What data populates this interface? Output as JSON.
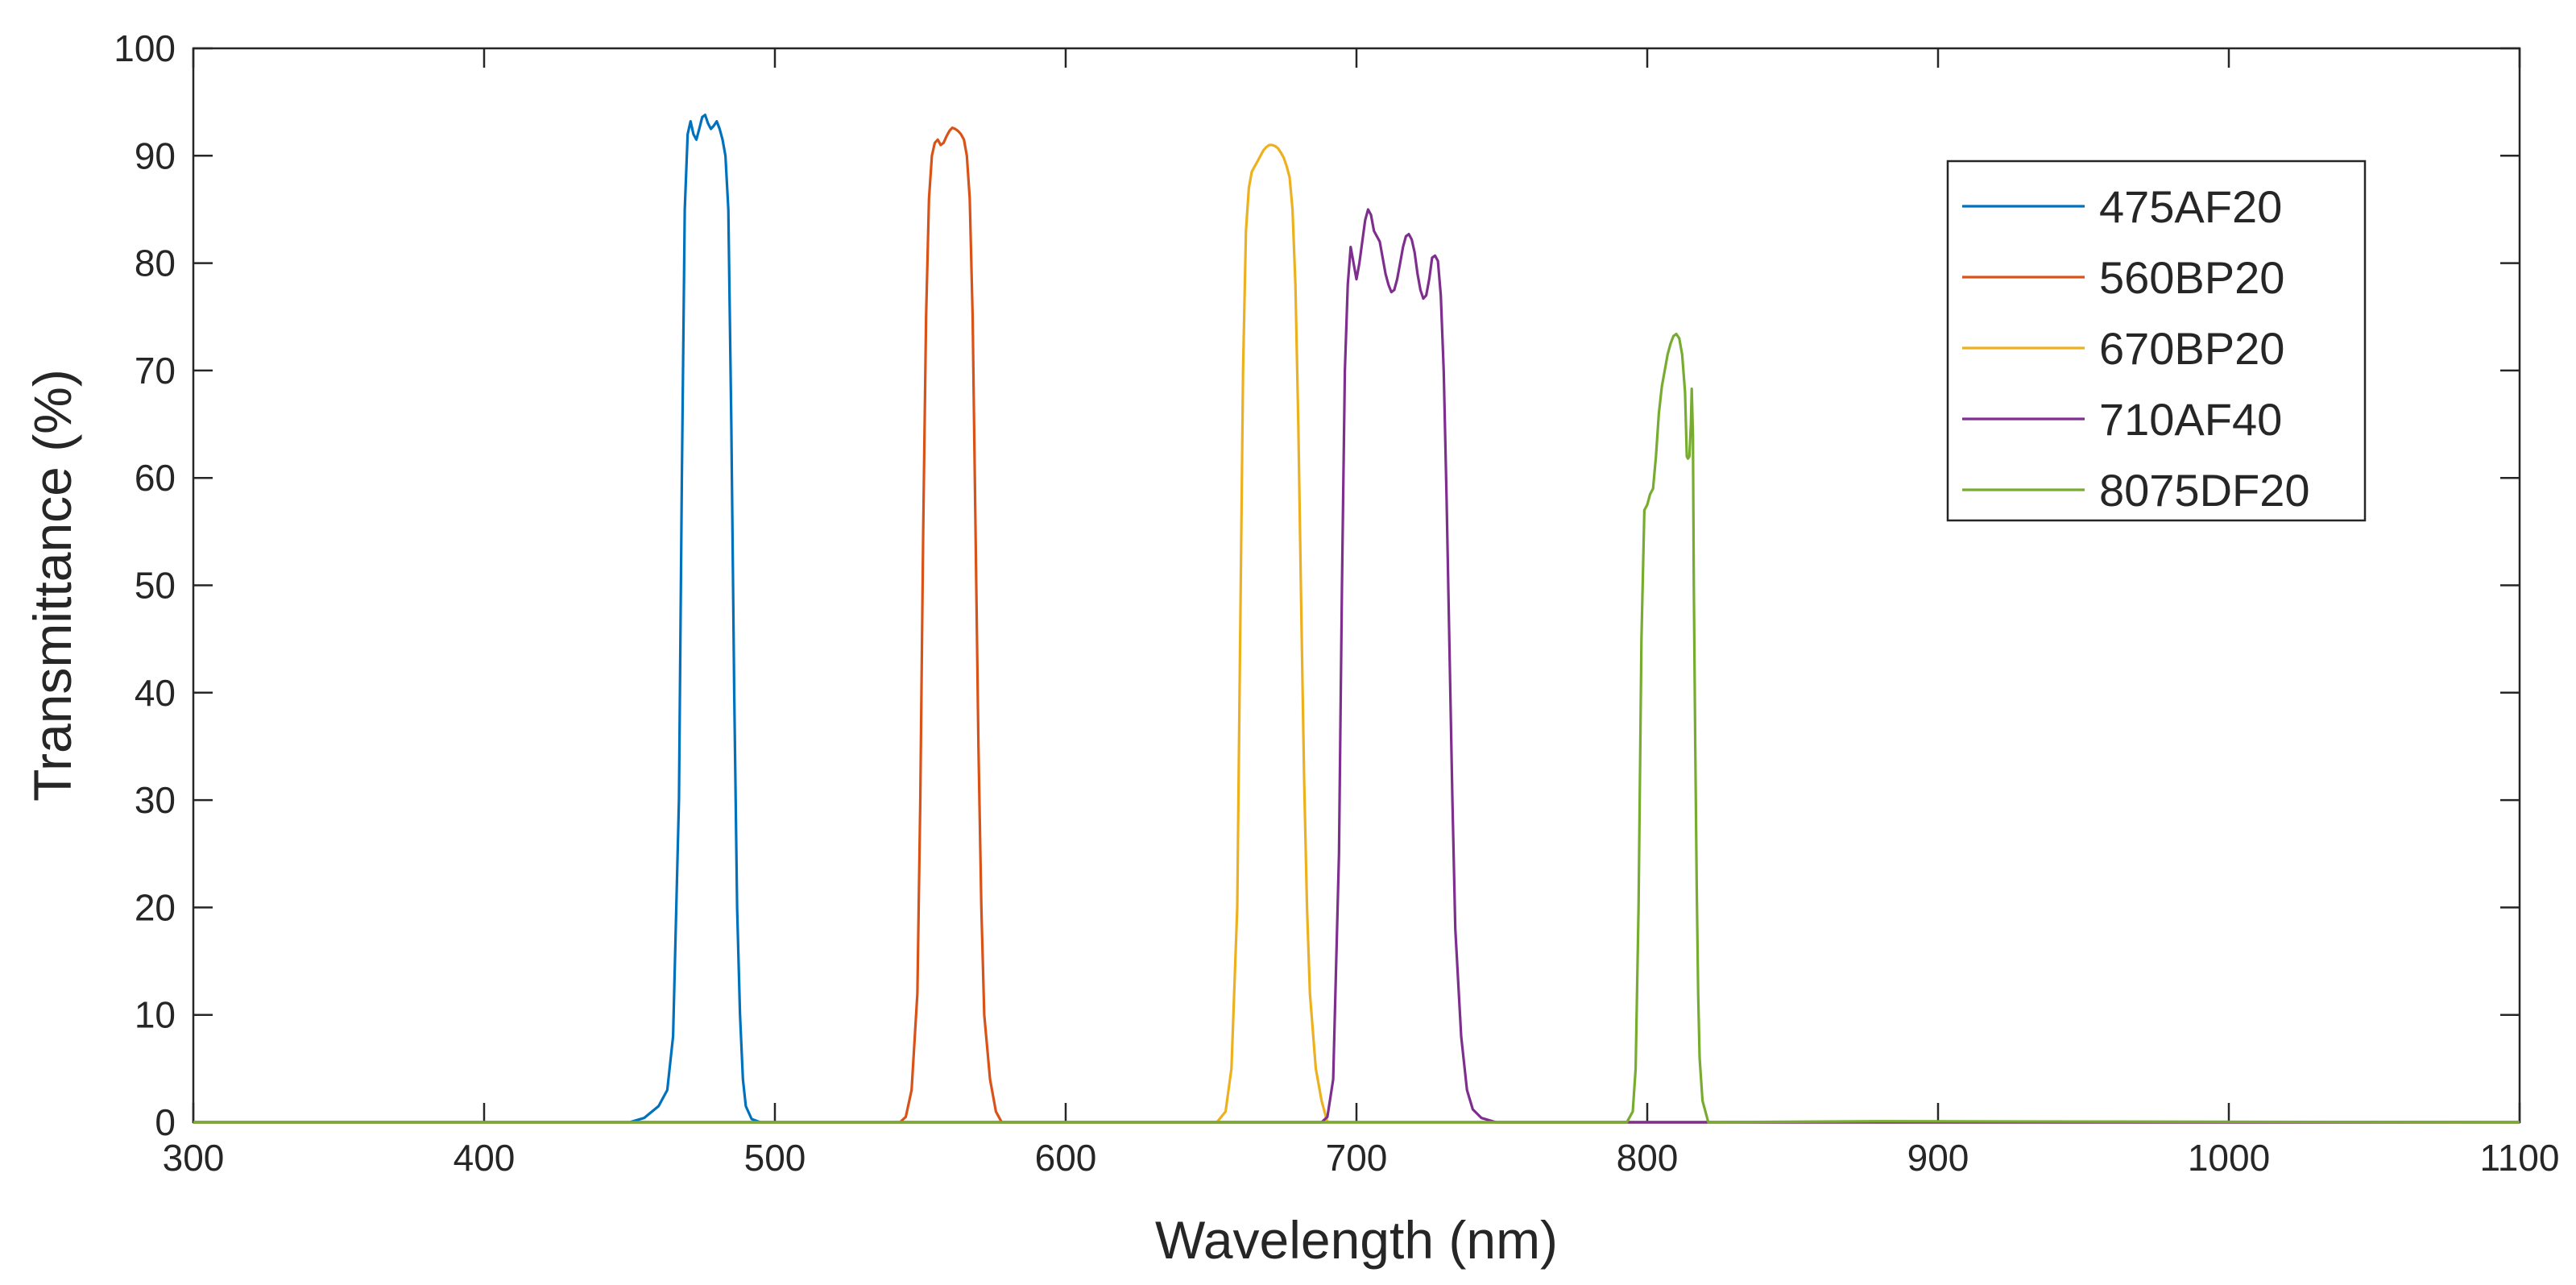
{
  "chart_data": {
    "type": "line",
    "title": "",
    "xlabel": "Wavelength (nm)",
    "ylabel": "Transmittance (%)",
    "xlim": [
      300,
      1100
    ],
    "ylim": [
      0,
      100
    ],
    "xticks": [
      300,
      400,
      500,
      600,
      700,
      800,
      900,
      1000,
      1100
    ],
    "yticks": [
      0,
      10,
      20,
      30,
      40,
      50,
      60,
      70,
      80,
      90,
      100
    ],
    "grid": false,
    "legend_position": "top-right",
    "series": [
      {
        "name": "475AF20",
        "color": "#0072BD",
        "points": [
          [
            300,
            0
          ],
          [
            450,
            0
          ],
          [
            455,
            0.4
          ],
          [
            460,
            1.5
          ],
          [
            463,
            3
          ],
          [
            465,
            8
          ],
          [
            467,
            30
          ],
          [
            468,
            60
          ],
          [
            469,
            85
          ],
          [
            470,
            92
          ],
          [
            471,
            93.2
          ],
          [
            472,
            92
          ],
          [
            473,
            91.5
          ],
          [
            474,
            92.5
          ],
          [
            475,
            93.6
          ],
          [
            476,
            93.8
          ],
          [
            477,
            93
          ],
          [
            478,
            92.5
          ],
          [
            479,
            92.8
          ],
          [
            480,
            93.2
          ],
          [
            481,
            92.5
          ],
          [
            482,
            91.5
          ],
          [
            483,
            90
          ],
          [
            484,
            85
          ],
          [
            485,
            65
          ],
          [
            486,
            40
          ],
          [
            487,
            20
          ],
          [
            488,
            10
          ],
          [
            489,
            4
          ],
          [
            490,
            1.5
          ],
          [
            492,
            0.3
          ],
          [
            495,
            0
          ],
          [
            1100,
            0
          ]
        ]
      },
      {
        "name": "560BP20",
        "color": "#D95319",
        "points": [
          [
            300,
            0
          ],
          [
            543,
            0
          ],
          [
            545,
            0.5
          ],
          [
            547,
            3
          ],
          [
            549,
            12
          ],
          [
            550,
            30
          ],
          [
            551,
            55
          ],
          [
            552,
            75
          ],
          [
            553,
            86
          ],
          [
            554,
            90
          ],
          [
            555,
            91.2
          ],
          [
            556,
            91.5
          ],
          [
            557,
            91
          ],
          [
            558,
            91.2
          ],
          [
            559,
            91.8
          ],
          [
            560,
            92.3
          ],
          [
            561,
            92.6
          ],
          [
            562,
            92.5
          ],
          [
            563,
            92.3
          ],
          [
            564,
            92
          ],
          [
            565,
            91.5
          ],
          [
            566,
            90
          ],
          [
            567,
            86
          ],
          [
            568,
            75
          ],
          [
            569,
            55
          ],
          [
            570,
            35
          ],
          [
            571,
            20
          ],
          [
            572,
            10
          ],
          [
            574,
            4
          ],
          [
            576,
            1
          ],
          [
            578,
            0
          ],
          [
            1100,
            0
          ]
        ]
      },
      {
        "name": "670BP20",
        "color": "#EDB120",
        "points": [
          [
            300,
            0
          ],
          [
            652,
            0
          ],
          [
            655,
            1
          ],
          [
            657,
            5
          ],
          [
            659,
            20
          ],
          [
            660,
            45
          ],
          [
            661,
            70
          ],
          [
            662,
            83
          ],
          [
            663,
            87
          ],
          [
            664,
            88.5
          ],
          [
            665,
            89
          ],
          [
            666,
            89.5
          ],
          [
            667,
            90
          ],
          [
            668,
            90.5
          ],
          [
            669,
            90.8
          ],
          [
            670,
            91
          ],
          [
            671,
            91
          ],
          [
            672,
            90.9
          ],
          [
            673,
            90.7
          ],
          [
            674,
            90.3
          ],
          [
            675,
            89.8
          ],
          [
            676,
            89
          ],
          [
            677,
            88
          ],
          [
            678,
            85
          ],
          [
            679,
            78
          ],
          [
            680,
            65
          ],
          [
            681,
            48
          ],
          [
            682,
            32
          ],
          [
            683,
            20
          ],
          [
            684,
            12
          ],
          [
            686,
            5
          ],
          [
            688,
            2
          ],
          [
            690,
            0
          ],
          [
            1100,
            0
          ]
        ]
      },
      {
        "name": "710AF40",
        "color": "#7E2F8E",
        "points": [
          [
            300,
            0
          ],
          [
            688,
            0
          ],
          [
            690,
            0.5
          ],
          [
            692,
            4
          ],
          [
            694,
            25
          ],
          [
            695,
            50
          ],
          [
            696,
            70
          ],
          [
            697,
            78
          ],
          [
            698,
            81.5
          ],
          [
            699,
            80
          ],
          [
            700,
            78.5
          ],
          [
            701,
            80
          ],
          [
            702,
            82
          ],
          [
            703,
            84
          ],
          [
            704,
            85
          ],
          [
            705,
            84.5
          ],
          [
            706,
            83
          ],
          [
            707,
            82.5
          ],
          [
            708,
            82
          ],
          [
            709,
            80.5
          ],
          [
            710,
            79
          ],
          [
            711,
            78
          ],
          [
            712,
            77.3
          ],
          [
            713,
            77.5
          ],
          [
            714,
            78.5
          ],
          [
            715,
            80
          ],
          [
            716,
            81.5
          ],
          [
            717,
            82.5
          ],
          [
            718,
            82.7
          ],
          [
            719,
            82.2
          ],
          [
            720,
            81
          ],
          [
            721,
            79
          ],
          [
            722,
            77.5
          ],
          [
            723,
            76.7
          ],
          [
            724,
            77
          ],
          [
            725,
            78.5
          ],
          [
            726,
            80.5
          ],
          [
            727,
            80.7
          ],
          [
            728,
            80.2
          ],
          [
            729,
            77
          ],
          [
            730,
            70
          ],
          [
            731,
            58
          ],
          [
            732,
            44
          ],
          [
            733,
            30
          ],
          [
            734,
            18
          ],
          [
            736,
            8
          ],
          [
            738,
            3
          ],
          [
            740,
            1.2
          ],
          [
            743,
            0.4
          ],
          [
            748,
            0
          ],
          [
            1100,
            0
          ]
        ]
      },
      {
        "name": "8075DF20",
        "color": "#77AC30",
        "points": [
          [
            300,
            0
          ],
          [
            793,
            0
          ],
          [
            795,
            1
          ],
          [
            796,
            5
          ],
          [
            797,
            20
          ],
          [
            798,
            45
          ],
          [
            799,
            57
          ],
          [
            800,
            57.5
          ],
          [
            801,
            58.5
          ],
          [
            802,
            59
          ],
          [
            803,
            62
          ],
          [
            804,
            66
          ],
          [
            805,
            68.5
          ],
          [
            806,
            70
          ],
          [
            807,
            71.5
          ],
          [
            808,
            72.5
          ],
          [
            809,
            73.2
          ],
          [
            810,
            73.4
          ],
          [
            811,
            73
          ],
          [
            812,
            71.5
          ],
          [
            813,
            68
          ],
          [
            813.6,
            62
          ],
          [
            814,
            61.8
          ],
          [
            814.5,
            62
          ],
          [
            815,
            65
          ],
          [
            815.3,
            68.3
          ],
          [
            815.7,
            64
          ],
          [
            816,
            50
          ],
          [
            816.5,
            35
          ],
          [
            817,
            22
          ],
          [
            817.5,
            12
          ],
          [
            818,
            6
          ],
          [
            819,
            2
          ],
          [
            821,
            0
          ],
          [
            880,
            0.1
          ],
          [
            1100,
            0
          ]
        ]
      }
    ]
  }
}
